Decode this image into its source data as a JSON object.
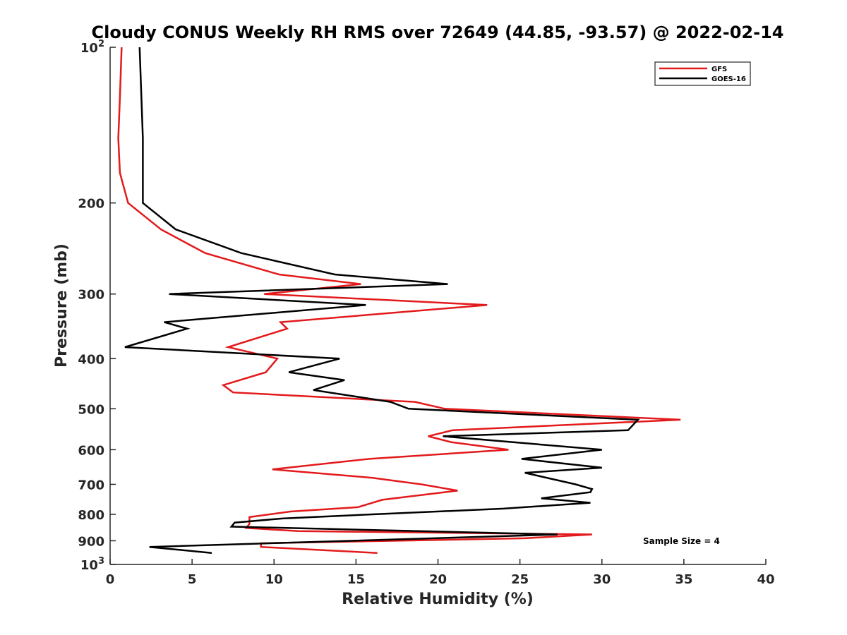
{
  "chart_data": {
    "type": "line",
    "title": "Cloudy CONUS Weekly RH RMS over 72649 (44.85, -93.57) @ 2022-02-14",
    "xlabel": "Relative Humidity (%)",
    "ylabel": "Pressure (mb)",
    "xlim": [
      0,
      40
    ],
    "ylim": [
      100,
      1000
    ],
    "yscale": "log",
    "y_reversed": true,
    "xticks": [
      0,
      5,
      10,
      15,
      20,
      25,
      30,
      35,
      40
    ],
    "yticks": [
      {
        "value": 100,
        "base": "10",
        "exp": "2"
      },
      {
        "value": 200,
        "label": "200"
      },
      {
        "value": 300,
        "label": "300"
      },
      {
        "value": 400,
        "label": "400"
      },
      {
        "value": 500,
        "label": "500"
      },
      {
        "value": 600,
        "label": "600"
      },
      {
        "value": 700,
        "label": "700"
      },
      {
        "value": 800,
        "label": "800"
      },
      {
        "value": 900,
        "label": "900"
      },
      {
        "value": 1000,
        "base": "10",
        "exp": "3"
      }
    ],
    "grid": false,
    "legend_position": "top-right",
    "series": [
      {
        "name": "GFS",
        "color": "#e31a1c",
        "points": [
          [
            0.7,
            100
          ],
          [
            0.6,
            125
          ],
          [
            0.5,
            150
          ],
          [
            0.6,
            175
          ],
          [
            1.1,
            200
          ],
          [
            3.1,
            225
          ],
          [
            5.8,
            250
          ],
          [
            10.3,
            275
          ],
          [
            15.3,
            287
          ],
          [
            9.4,
            300
          ],
          [
            23.0,
            315
          ],
          [
            10.4,
            340
          ],
          [
            10.8,
            350
          ],
          [
            7.2,
            380
          ],
          [
            10.2,
            400
          ],
          [
            9.5,
            425
          ],
          [
            6.9,
            450
          ],
          [
            7.5,
            465
          ],
          [
            18.6,
            485
          ],
          [
            20.4,
            500
          ],
          [
            34.8,
            525
          ],
          [
            20.9,
            550
          ],
          [
            19.4,
            565
          ],
          [
            20.8,
            580
          ],
          [
            24.3,
            600
          ],
          [
            15.8,
            625
          ],
          [
            9.9,
            655
          ],
          [
            16.0,
            680
          ],
          [
            19.0,
            700
          ],
          [
            21.2,
            720
          ],
          [
            16.6,
            750
          ],
          [
            15.1,
            775
          ],
          [
            11.0,
            790
          ],
          [
            8.5,
            810
          ],
          [
            8.5,
            835
          ],
          [
            8.3,
            850
          ],
          [
            11.5,
            862
          ],
          [
            29.4,
            875
          ],
          [
            25.3,
            890
          ],
          [
            9.2,
            910
          ],
          [
            9.2,
            925
          ],
          [
            16.3,
            950
          ]
        ]
      },
      {
        "name": "GOES-16",
        "color": "#000000",
        "points": [
          [
            1.8,
            100
          ],
          [
            2.0,
            150
          ],
          [
            2.0,
            200
          ],
          [
            4.0,
            225
          ],
          [
            8.0,
            250
          ],
          [
            13.7,
            275
          ],
          [
            20.6,
            287
          ],
          [
            3.6,
            300
          ],
          [
            15.6,
            315
          ],
          [
            3.3,
            340
          ],
          [
            4.7,
            350
          ],
          [
            0.9,
            380
          ],
          [
            14.0,
            400
          ],
          [
            10.9,
            425
          ],
          [
            14.3,
            440
          ],
          [
            12.4,
            460
          ],
          [
            17.1,
            485
          ],
          [
            18.2,
            500
          ],
          [
            32.2,
            525
          ],
          [
            31.6,
            550
          ],
          [
            20.3,
            565
          ],
          [
            30.0,
            600
          ],
          [
            25.1,
            625
          ],
          [
            30.0,
            650
          ],
          [
            25.3,
            665
          ],
          [
            28.4,
            700
          ],
          [
            29.4,
            715
          ],
          [
            29.3,
            725
          ],
          [
            26.3,
            745
          ],
          [
            29.3,
            760
          ],
          [
            24.0,
            780
          ],
          [
            16.0,
            800
          ],
          [
            10.5,
            815
          ],
          [
            7.6,
            830
          ],
          [
            7.4,
            845
          ],
          [
            27.3,
            875
          ],
          [
            2.4,
            925
          ],
          [
            6.2,
            950
          ]
        ]
      }
    ],
    "annotation": "Sample Size = 4"
  }
}
